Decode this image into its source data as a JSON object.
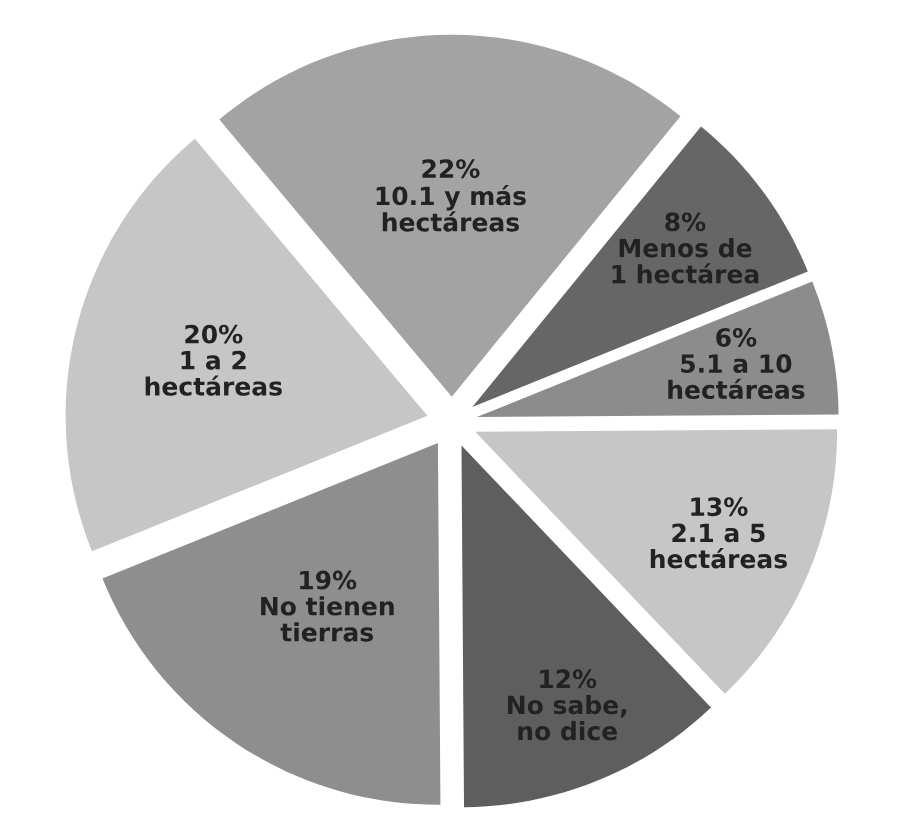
{
  "chart_data": {
    "type": "pie",
    "categories": [
      "10.1 y más\nhectáreas",
      "Menos de\n1 hectárea",
      "5.1 a 10\nhectáreas",
      "2.1 a 5\nhectáreas",
      "No sabe,\nno dice",
      "No tienen\ntierras",
      "1 a 2\nhectáreas"
    ],
    "values": [
      22,
      8,
      6,
      13,
      12,
      19,
      20
    ],
    "value_labels": [
      "22%",
      "8%",
      "6%",
      "13%",
      "12%",
      "19%",
      "20%"
    ],
    "colors": [
      "#a3a3a3",
      "#666666",
      "#8c8c8c",
      "#c6c6c6",
      "#5e5e5e",
      "#8e8e8e",
      "#c6c6c6"
    ],
    "legend": false
  }
}
